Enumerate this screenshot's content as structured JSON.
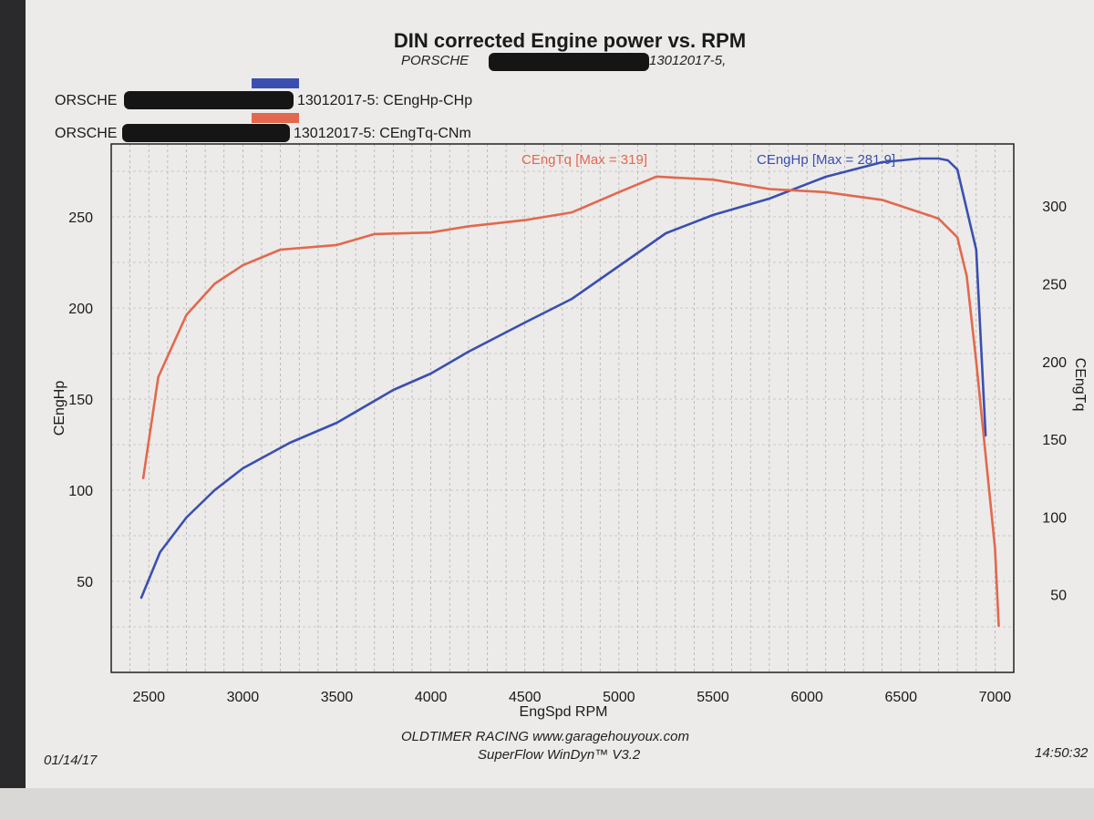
{
  "header": {
    "title": "DIN corrected Engine power vs. RPM",
    "subtitle_prefix": "PORSCHE",
    "subtitle_suffix": "13012017-5,"
  },
  "legend": [
    {
      "prefix": "ORSCHE",
      "suffix": "13012017-5: CEngHp-CHp",
      "color": "#3a4fb0"
    },
    {
      "prefix": "ORSCHE",
      "suffix": "13012017-5: CEngTq-CNm",
      "color": "#e2684e"
    }
  ],
  "footer": {
    "line1": "OLDTIMER RACING www.garagehouyoux.com",
    "line2": "SuperFlow WinDyn™ V3.2",
    "date": "01/14/17",
    "time": "14:50:32"
  },
  "chart_data": {
    "type": "line",
    "title": "DIN corrected Engine power vs. RPM",
    "xlabel": "EngSpd RPM",
    "ylabel_left": "CEngHp",
    "ylabel_right": "CEngTq",
    "xlim": [
      2300,
      7100
    ],
    "ylim_left": [
      0,
      290
    ],
    "ylim_right": [
      0,
      340
    ],
    "x_ticks": [
      2500,
      3000,
      3500,
      4000,
      4500,
      5000,
      5500,
      6000,
      6500,
      7000
    ],
    "y_ticks_left": [
      50,
      100,
      150,
      200,
      250
    ],
    "y_ticks_right": [
      50,
      100,
      150,
      200,
      250,
      300
    ],
    "grid": true,
    "series": [
      {
        "name": "CEngHp",
        "axis": "left",
        "color": "#3a4fb0",
        "annotation": "CEngHp [Max = 281.9]",
        "x": [
          2460,
          2560,
          2700,
          2850,
          3000,
          3250,
          3500,
          3800,
          4000,
          4200,
          4500,
          4750,
          5000,
          5250,
          5500,
          5800,
          6100,
          6400,
          6600,
          6700,
          6750,
          6800,
          6900,
          6950
        ],
        "y": [
          41,
          66,
          85,
          100,
          112,
          126,
          137,
          155,
          164,
          176,
          192,
          205,
          223,
          241,
          251,
          260,
          272,
          280,
          282,
          282,
          281,
          276,
          232,
          130
        ]
      },
      {
        "name": "CEngTq",
        "axis": "right",
        "color": "#e2684e",
        "annotation": "CEngTq [Max = 319]",
        "x": [
          2470,
          2550,
          2700,
          2850,
          3000,
          3200,
          3500,
          3700,
          4000,
          4200,
          4500,
          4750,
          5000,
          5200,
          5500,
          5800,
          6100,
          6400,
          6700,
          6800,
          6850,
          6900,
          6950,
          7000,
          7020
        ],
        "y": [
          125,
          190,
          230,
          250,
          262,
          272,
          275,
          282,
          283,
          287,
          291,
          296,
          309,
          319,
          317,
          311,
          309,
          304,
          292,
          280,
          255,
          200,
          140,
          80,
          30
        ]
      }
    ]
  }
}
